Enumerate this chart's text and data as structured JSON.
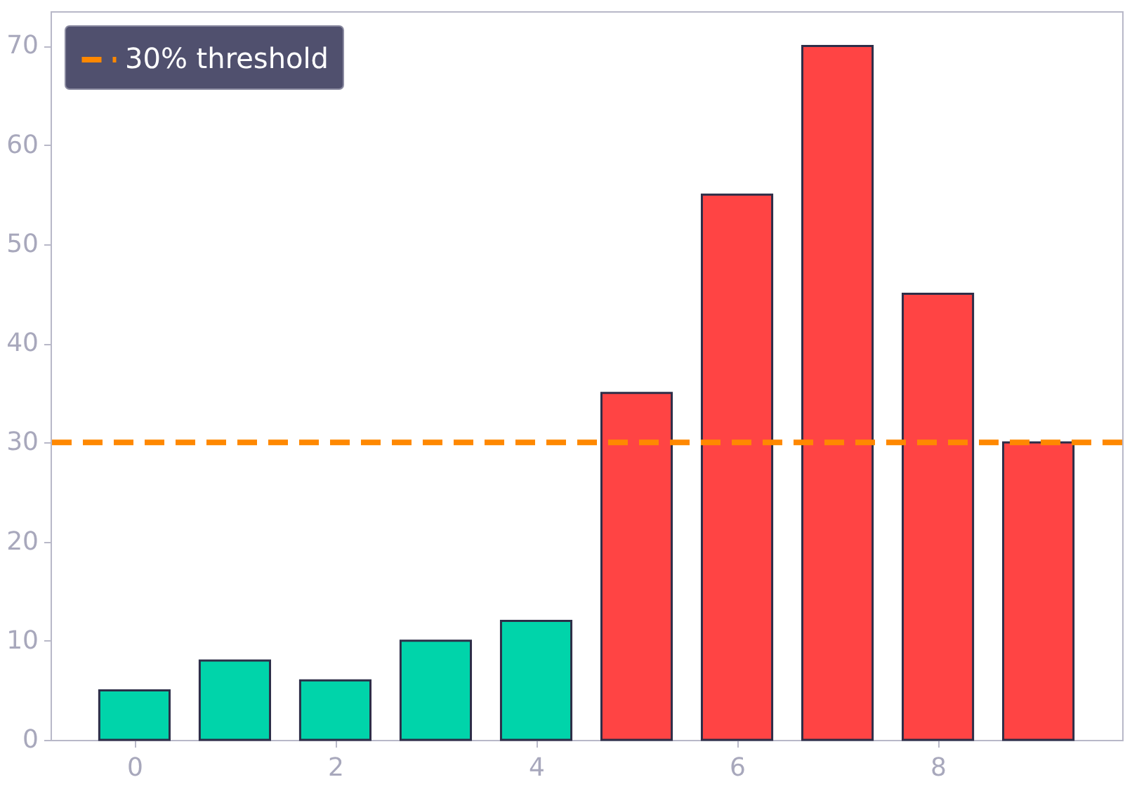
{
  "chart_data": {
    "type": "bar",
    "x": [
      0,
      1,
      2,
      3,
      4,
      5,
      6,
      7,
      8,
      9
    ],
    "values": [
      5,
      8,
      6,
      10,
      12,
      35,
      55,
      70,
      45,
      30
    ],
    "colors": [
      "#00d4aa",
      "#00d4aa",
      "#00d4aa",
      "#00d4aa",
      "#00d4aa",
      "#ff4444",
      "#ff4444",
      "#ff4444",
      "#ff4444",
      "#ff4444"
    ],
    "xlim": [
      -0.835,
      9.835
    ],
    "xticks": [
      0,
      2,
      4,
      6,
      8
    ],
    "ylim": [
      0,
      73.5
    ],
    "yticks": [
      0,
      10,
      20,
      30,
      40,
      50,
      60,
      70
    ],
    "ref_lines": [
      {
        "axis": "y",
        "value": 30,
        "label": "30% threshold",
        "color": "#ff8800",
        "line_style": "dashed"
      }
    ],
    "legend": "top left",
    "grid": false
  }
}
